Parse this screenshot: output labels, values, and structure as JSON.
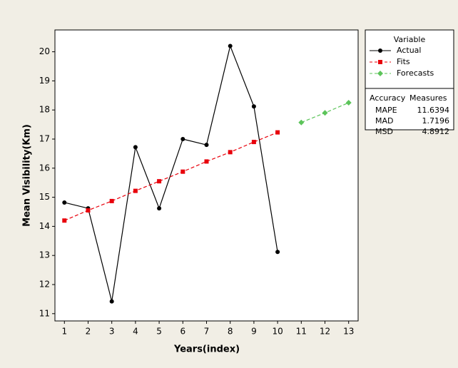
{
  "chart_data": {
    "type": "line",
    "xlabel": "Years(index)",
    "ylabel": "Mean Visibility(Km)",
    "xlim": [
      0.6,
      13.4
    ],
    "xticks": [
      1,
      2,
      3,
      4,
      5,
      6,
      7,
      8,
      9,
      10,
      11,
      12,
      13
    ],
    "ylim": [
      10.75,
      20.75
    ],
    "yticks": [
      11,
      12,
      13,
      14,
      15,
      16,
      17,
      18,
      19,
      20
    ],
    "legend_title": "Variable",
    "series": [
      {
        "name": "Actual",
        "color": "#000000",
        "marker": "circle",
        "dashed": false,
        "x": [
          1,
          2,
          3,
          4,
          5,
          6,
          7,
          8,
          9,
          10
        ],
        "values": [
          14.82,
          14.62,
          11.42,
          16.72,
          14.62,
          17.0,
          16.8,
          20.2,
          18.12,
          13.12
        ]
      },
      {
        "name": "Fits",
        "color": "#e8000b",
        "marker": "square",
        "dashed": true,
        "x": [
          1,
          2,
          3,
          4,
          5,
          6,
          7,
          8,
          9,
          10
        ],
        "values": [
          14.2,
          14.55,
          14.87,
          15.22,
          15.55,
          15.88,
          16.23,
          16.55,
          16.9,
          17.23
        ]
      },
      {
        "name": "Forecasts",
        "color": "#5cc45a",
        "marker": "diamond",
        "dashed": true,
        "x": [
          11,
          12,
          13
        ],
        "values": [
          17.57,
          17.9,
          18.25
        ]
      }
    ],
    "accuracy": {
      "title": [
        "Accuracy",
        "Measures"
      ],
      "rows": [
        [
          "MAPE",
          11.6394
        ],
        [
          "MAD",
          1.7196
        ],
        [
          "MSD",
          4.8912
        ]
      ]
    }
  }
}
